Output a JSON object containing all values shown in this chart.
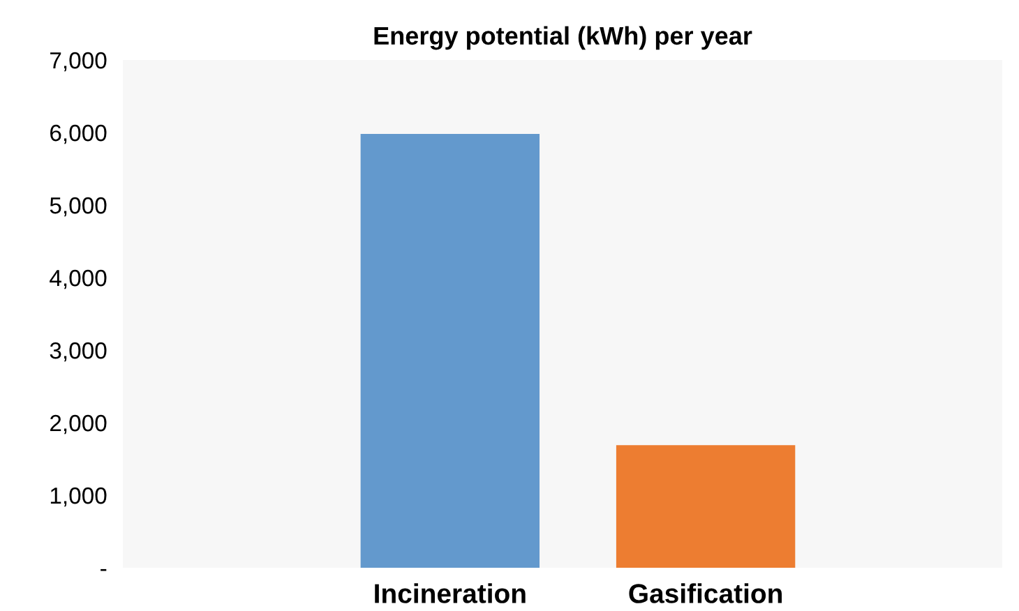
{
  "chart_data": {
    "type": "bar",
    "title": "Energy potential (kWh) per year",
    "categories": [
      "Incineration",
      "Gasification"
    ],
    "values": [
      5980,
      1690
    ],
    "colors": [
      "#6399cd",
      "#ed7d31"
    ],
    "ylim": [
      0,
      7000
    ],
    "yticks": [
      {
        "value": 0,
        "label": "-"
      },
      {
        "value": 1000,
        "label": "1,000"
      },
      {
        "value": 2000,
        "label": "2,000"
      },
      {
        "value": 3000,
        "label": "3,000"
      },
      {
        "value": 4000,
        "label": "4,000"
      },
      {
        "value": 5000,
        "label": "5,000"
      },
      {
        "value": 6000,
        "label": "6,000"
      },
      {
        "value": 7000,
        "label": "7,000"
      }
    ],
    "grid": false
  }
}
